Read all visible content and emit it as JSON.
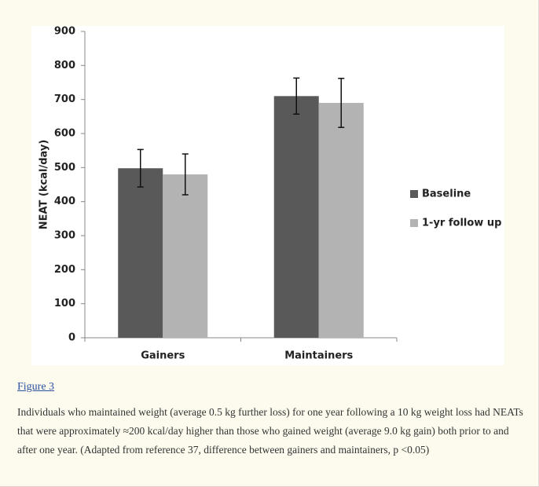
{
  "chart_data": {
    "type": "bar",
    "y_label": "NEAT (kcal/day)",
    "categories": [
      "Gainers",
      "Maintainers"
    ],
    "series": [
      {
        "name": "Baseline",
        "color": "#595959",
        "values": [
          498,
          710
        ],
        "errors": [
          55,
          53
        ]
      },
      {
        "name": "1-yr follow up",
        "color": "#b3b3b3",
        "values": [
          480,
          690
        ],
        "errors": [
          60,
          72
        ]
      }
    ],
    "ylim": [
      0,
      900
    ],
    "yticks": [
      0,
      100,
      200,
      300,
      400,
      500,
      600,
      700,
      800,
      900
    ],
    "grid": false,
    "legend": "right"
  },
  "figure": {
    "label": "Figure 3",
    "caption": "Individuals who maintained weight (average 0.5 kg further loss) for one year following a 10 kg weight loss had NEATs that were approximately ≈200 kcal/day higher than those who gained weight (average 9.0 kg gain) both prior to and after one year. (Adapted from reference 37, difference between gainers and maintainers, p <0.05)"
  }
}
